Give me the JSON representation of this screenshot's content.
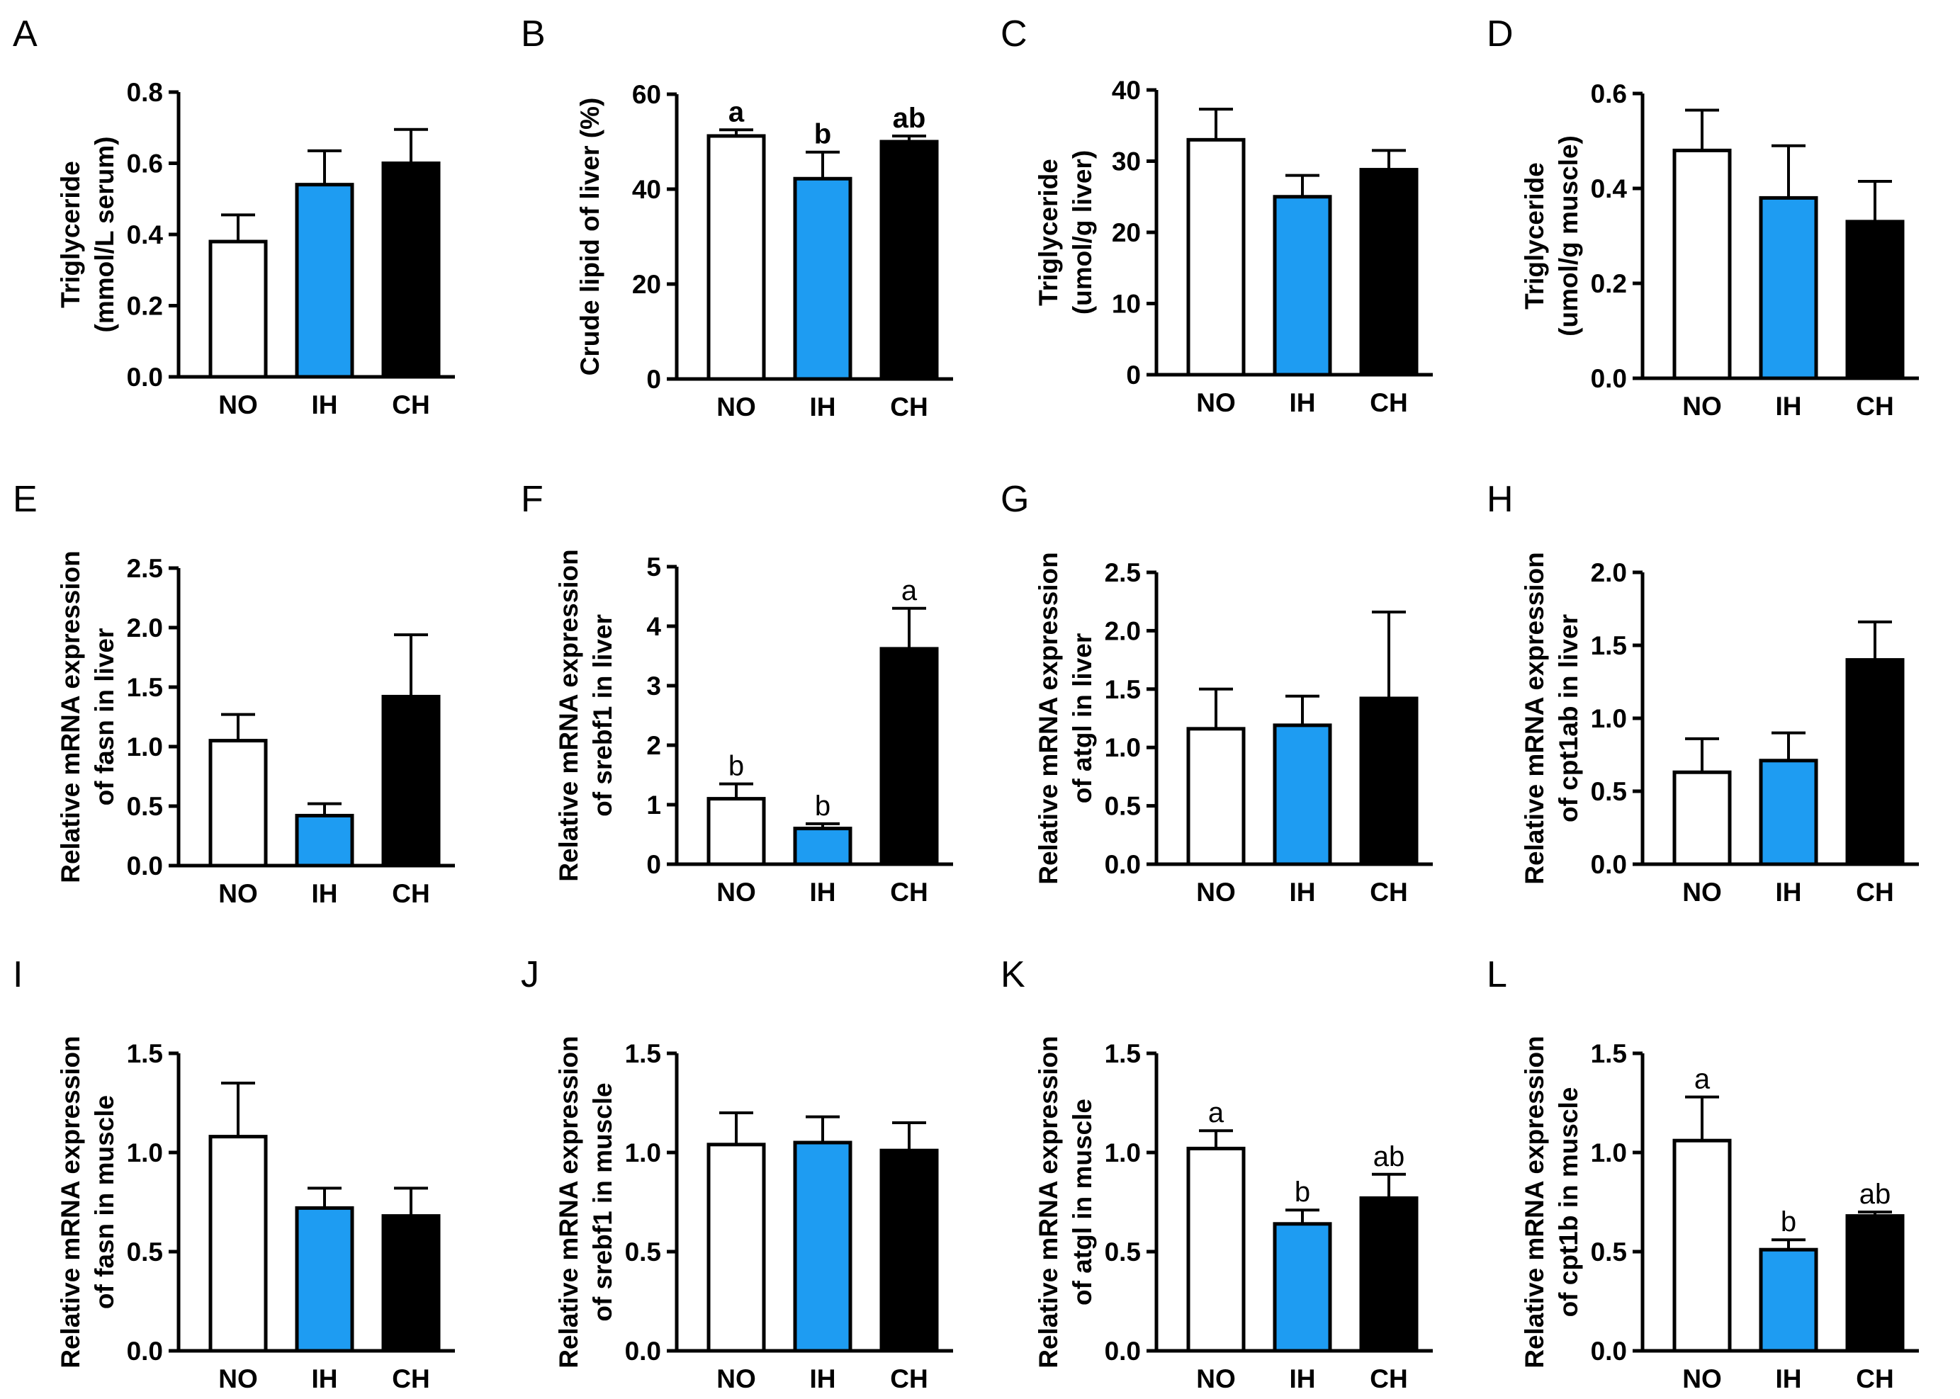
{
  "colors": {
    "NO": "#ffffff",
    "IH": "#1e9cf2",
    "CH": "#000000",
    "axis": "#000000"
  },
  "chart_data": [
    {
      "panel": "A",
      "type": "bar",
      "categories": [
        "NO",
        "IH",
        "CH"
      ],
      "values": [
        0.38,
        0.54,
        0.6
      ],
      "errors": [
        0.075,
        0.095,
        0.095
      ],
      "ylabel": [
        "Triglyceride",
        "(mmol/L serum)"
      ],
      "ylim": [
        0,
        0.8
      ],
      "ticks": [
        "0.0",
        "0.2",
        "0.4",
        "0.6",
        "0.8"
      ],
      "letters": [
        "",
        "",
        ""
      ],
      "bold": true
    },
    {
      "panel": "B",
      "type": "bar",
      "categories": [
        "NO",
        "IH",
        "CH"
      ],
      "values": [
        51.2,
        42.2,
        50.0
      ],
      "errors": [
        1.3,
        5.6,
        1.2
      ],
      "ylabel": [
        "Crude lipid of liver (%)"
      ],
      "ylim": [
        0,
        60
      ],
      "ticks": [
        "0",
        "20",
        "40",
        "60"
      ],
      "letters": [
        "a",
        "b",
        "ab"
      ],
      "bold": true
    },
    {
      "panel": "C",
      "type": "bar",
      "categories": [
        "NO",
        "IH",
        "CH"
      ],
      "values": [
        33.0,
        25.0,
        28.8
      ],
      "errors": [
        4.3,
        3.0,
        2.7
      ],
      "ylabel": [
        "Triglyceride",
        "(umol/g liver)"
      ],
      "ylim": [
        0,
        40
      ],
      "ticks": [
        "0",
        "10",
        "20",
        "30",
        "40"
      ],
      "letters": [
        "",
        "",
        ""
      ],
      "bold": true
    },
    {
      "panel": "D",
      "type": "bar",
      "categories": [
        "NO",
        "IH",
        "CH"
      ],
      "values": [
        0.48,
        0.38,
        0.33
      ],
      "errors": [
        0.085,
        0.11,
        0.085
      ],
      "ylabel": [
        "Triglyceride",
        "(umol/g muscle)"
      ],
      "ylim": [
        0,
        0.6
      ],
      "ticks": [
        "0.0",
        "0.2",
        "0.4",
        "0.6"
      ],
      "letters": [
        "",
        "",
        ""
      ],
      "bold": true
    },
    {
      "panel": "E",
      "type": "bar",
      "categories": [
        "NO",
        "IH",
        "CH"
      ],
      "values": [
        1.05,
        0.42,
        1.42
      ],
      "errors": [
        0.22,
        0.1,
        0.52
      ],
      "ylabel": [
        "Relative mRNA expression",
        "of fasn in liver"
      ],
      "ylim": [
        0,
        2.5
      ],
      "ticks": [
        "0.0",
        "0.5",
        "1.0",
        "1.5",
        "2.0",
        "2.5"
      ],
      "letters": [
        "",
        "",
        ""
      ],
      "bold": true
    },
    {
      "panel": "F",
      "type": "bar",
      "categories": [
        "NO",
        "IH",
        "CH"
      ],
      "values": [
        1.1,
        0.6,
        3.62
      ],
      "errors": [
        0.25,
        0.08,
        0.68
      ],
      "ylabel": [
        "Relative mRNA expression",
        "of srebf1 in liver"
      ],
      "ylim": [
        0,
        5
      ],
      "ticks": [
        "0",
        "1",
        "2",
        "3",
        "4",
        "5"
      ],
      "letters": [
        "b",
        "b",
        "a"
      ],
      "bold": true
    },
    {
      "panel": "G",
      "type": "bar",
      "categories": [
        "NO",
        "IH",
        "CH"
      ],
      "values": [
        1.16,
        1.19,
        1.42
      ],
      "errors": [
        0.34,
        0.25,
        0.74
      ],
      "ylabel": [
        "Relative mRNA expression",
        "of atgl in liver"
      ],
      "ylim": [
        0,
        2.5
      ],
      "ticks": [
        "0.0",
        "0.5",
        "1.0",
        "1.5",
        "2.0",
        "2.5"
      ],
      "letters": [
        "",
        "",
        ""
      ],
      "bold": true
    },
    {
      "panel": "H",
      "type": "bar",
      "categories": [
        "NO",
        "IH",
        "CH"
      ],
      "values": [
        0.63,
        0.71,
        1.4
      ],
      "errors": [
        0.23,
        0.19,
        0.26
      ],
      "ylabel": [
        "Relative mRNA expression",
        "of cpt1ab in liver"
      ],
      "ylim": [
        0,
        2.0
      ],
      "ticks": [
        "0.0",
        "0.5",
        "1.0",
        "1.5",
        "2.0"
      ],
      "letters": [
        "",
        "",
        ""
      ],
      "bold": true
    },
    {
      "panel": "I",
      "type": "bar",
      "categories": [
        "NO",
        "IH",
        "CH"
      ],
      "values": [
        1.08,
        0.72,
        0.68
      ],
      "errors": [
        0.27,
        0.1,
        0.14
      ],
      "ylabel": [
        "Relative mRNA expression",
        "of fasn in muscle"
      ],
      "ylim": [
        0,
        1.5
      ],
      "ticks": [
        "0.0",
        "0.5",
        "1.0",
        "1.5"
      ],
      "letters": [
        "",
        "",
        ""
      ],
      "bold": true
    },
    {
      "panel": "J",
      "type": "bar",
      "categories": [
        "NO",
        "IH",
        "CH"
      ],
      "values": [
        1.04,
        1.05,
        1.01
      ],
      "errors": [
        0.16,
        0.13,
        0.14
      ],
      "ylabel": [
        "Relative mRNA expression",
        "of srebf1 in muscle"
      ],
      "ylim": [
        0,
        1.5
      ],
      "ticks": [
        "0.0",
        "0.5",
        "1.0",
        "1.5"
      ],
      "letters": [
        "",
        "",
        ""
      ],
      "bold": true
    },
    {
      "panel": "K",
      "type": "bar",
      "categories": [
        "NO",
        "IH",
        "CH"
      ],
      "values": [
        1.02,
        0.64,
        0.77
      ],
      "errors": [
        0.09,
        0.07,
        0.12
      ],
      "ylabel": [
        "Relative mRNA expression",
        "of atgl in muscle"
      ],
      "ylim": [
        0,
        1.5
      ],
      "ticks": [
        "0.0",
        "0.5",
        "1.0",
        "1.5"
      ],
      "letters": [
        "a",
        "b",
        "ab"
      ],
      "bold": true
    },
    {
      "panel": "L",
      "type": "bar",
      "categories": [
        "NO",
        "IH",
        "CH"
      ],
      "values": [
        1.06,
        0.51,
        0.68
      ],
      "errors": [
        0.22,
        0.05,
        0.02
      ],
      "ylabel": [
        "Relative mRNA expression",
        "of cpt1b in muscle"
      ],
      "ylim": [
        0,
        1.5
      ],
      "ticks": [
        "0.0",
        "0.5",
        "1.0",
        "1.5"
      ],
      "letters": [
        "a",
        "b",
        "ab"
      ],
      "bold": true
    }
  ]
}
